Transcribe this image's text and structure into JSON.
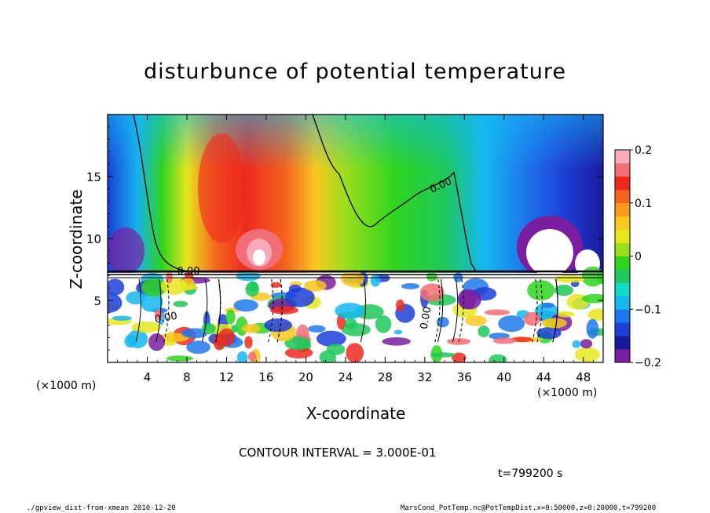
{
  "chart_data": {
    "type": "heatmap",
    "title": "disturbunce of potential temperature",
    "xlabel": "X-coordinate",
    "ylabel": "Z-coordinate",
    "x_unit_left": "(×1000 m)",
    "x_unit_right": "(×1000 m)",
    "xlim": [
      0,
      50
    ],
    "ylim": [
      0,
      20
    ],
    "x_ticks": [
      4,
      8,
      12,
      16,
      20,
      24,
      28,
      32,
      36,
      40,
      44,
      48
    ],
    "y_ticks": [
      5,
      10,
      15
    ],
    "colorbar": {
      "range": [
        -0.2,
        0.2
      ],
      "ticks": [
        {
          "value": 0.2,
          "label": "0.2"
        },
        {
          "value": 0.1,
          "label": "0.1"
        },
        {
          "value": 0,
          "label": "0"
        },
        {
          "value": -0.1,
          "label": "−0.1"
        },
        {
          "value": -0.2,
          "label": "−0.2"
        }
      ],
      "colors": [
        "#7a1fa0",
        "#1a1a9c",
        "#1f3fd8",
        "#1e78ec",
        "#14b8f0",
        "#12d8c8",
        "#1ec85a",
        "#2fd41e",
        "#9bde1e",
        "#e6e61e",
        "#f8c81e",
        "#f89a1e",
        "#f4641e",
        "#ee2a1e",
        "#f26e76",
        "#f8aab8"
      ]
    },
    "contour_labels": [
      "0.00",
      "0.00",
      "0.00",
      "0.00"
    ],
    "contour_interval": "CONTOUR INTERVAL = 3.000E-01",
    "time": "t=799200 s"
  },
  "footer": {
    "left": "./gpview_dist-from-xmean  2010-12-20",
    "right": "MarsCond_PotTemp.nc@PotTempDist,x=0:50000,z=0:20000,t=799200"
  }
}
